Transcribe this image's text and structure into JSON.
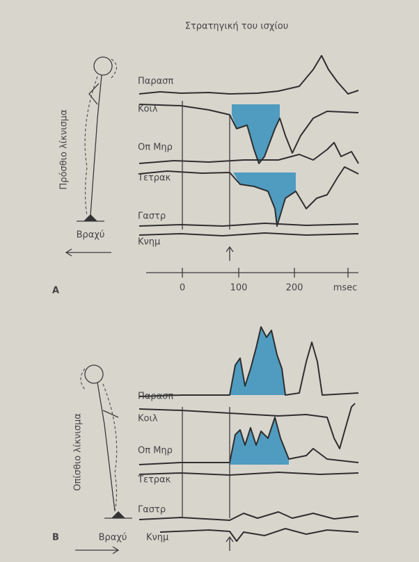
{
  "title": "Στρατηγική του ισχίου",
  "panel_a": {
    "label": "A",
    "side_label": "Πρόσθιο λίκνισμα",
    "direction": "Βραχύ",
    "muscles": [
      "Παρασπ",
      "Κοιλ",
      "Οπ Μηρ",
      "Τετρακ",
      "Γαστρ",
      "Κνημ"
    ],
    "time_axis": {
      "ticks": [
        "0",
        "100",
        "200"
      ],
      "unit": "msec"
    }
  },
  "panel_b": {
    "label": "B",
    "side_label": "Οπίσθιο λίκνισμα",
    "direction": "Βραχύ",
    "muscles": [
      "Παρασπ",
      "Κοιλ",
      "Οπ Μηρ",
      "Τετρακ",
      "Γαστρ",
      "Κνημ"
    ]
  }
}
